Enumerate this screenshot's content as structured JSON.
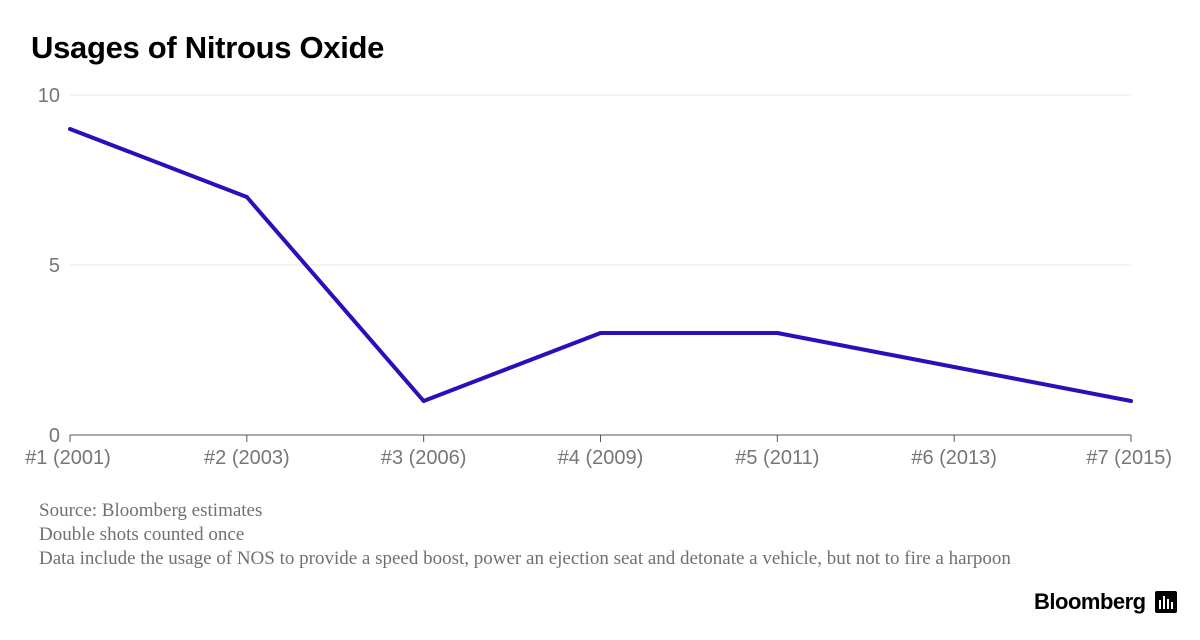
{
  "chart_data": {
    "type": "line",
    "title": "Usages of Nitrous Oxide",
    "categories": [
      "#1 (2001)",
      "#2 (2003)",
      "#3 (2006)",
      "#4 (2009)",
      "#5 (2011)",
      "#6 (2013)",
      "#7 (2015)"
    ],
    "series": [
      {
        "values": [
          9,
          7,
          1,
          3,
          3,
          2,
          1
        ]
      }
    ],
    "ylim": [
      0,
      10
    ],
    "yticks": [
      0,
      5,
      10
    ],
    "grid": true,
    "line_color": "#2a0fbb"
  },
  "notes": [
    "Source: Bloomberg estimates",
    "Double shots counted once",
    "Data include the usage of NOS to provide a speed boost, power an ejection seat and detonate a vehicle, but not to fire a harpoon"
  ],
  "brand": {
    "name": "Bloomberg",
    "icon": "bar-chart-icon"
  }
}
